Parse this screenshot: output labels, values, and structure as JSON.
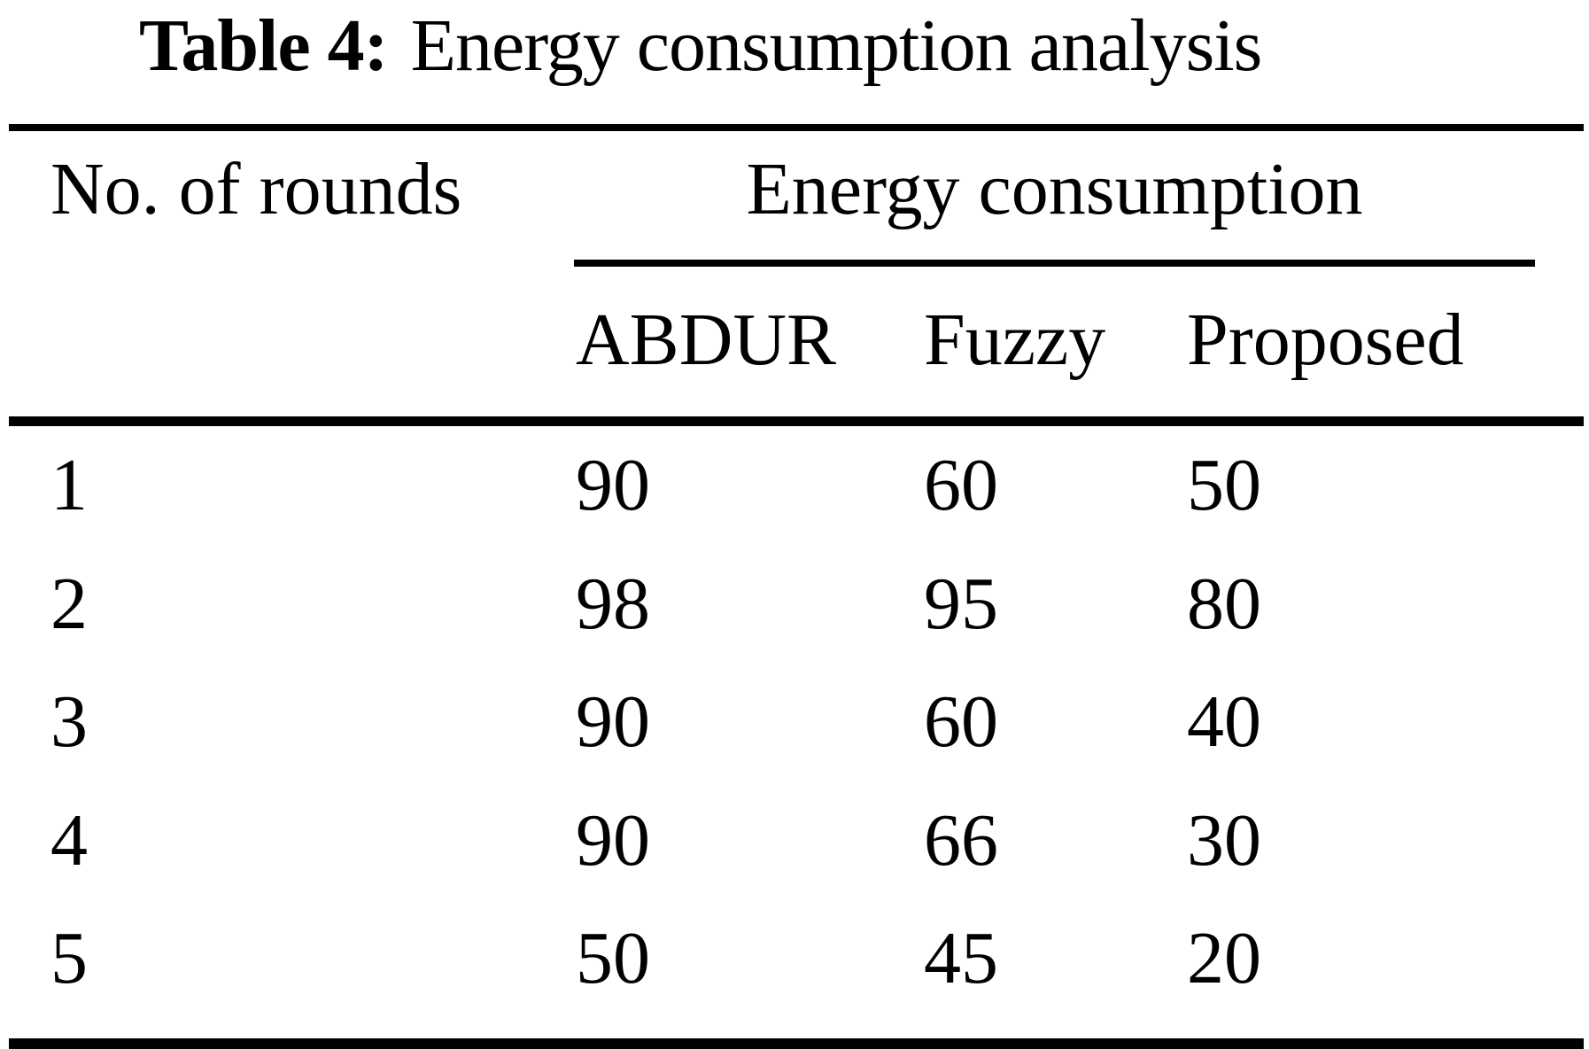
{
  "caption": {
    "label": "Table 4:",
    "text": "Energy consumption analysis"
  },
  "table": {
    "col1_header": "No. of rounds",
    "group_header": "Energy consumption",
    "sub_headers": [
      "ABDUR",
      "Fuzzy",
      "Proposed"
    ],
    "rows": [
      {
        "round": "1",
        "abdur": "90",
        "fuzzy": "60",
        "proposed": "50"
      },
      {
        "round": "2",
        "abdur": "98",
        "fuzzy": "95",
        "proposed": "80"
      },
      {
        "round": "3",
        "abdur": "90",
        "fuzzy": "60",
        "proposed": "40"
      },
      {
        "round": "4",
        "abdur": "90",
        "fuzzy": "66",
        "proposed": "30"
      },
      {
        "round": "5",
        "abdur": "50",
        "fuzzy": "45",
        "proposed": "20"
      }
    ]
  },
  "colors": {
    "background": "#ffffff",
    "text": "#000000",
    "rule": "#000000"
  },
  "chart_data": {
    "type": "table",
    "title": "Table 4: Energy consumption analysis",
    "columns": [
      "No. of rounds",
      "ABDUR",
      "Fuzzy",
      "Proposed"
    ],
    "group_header": {
      "label": "Energy consumption",
      "spans": [
        "ABDUR",
        "Fuzzy",
        "Proposed"
      ]
    },
    "rows": [
      [
        1,
        90,
        60,
        50
      ],
      [
        2,
        98,
        95,
        80
      ],
      [
        3,
        90,
        60,
        40
      ],
      [
        4,
        90,
        66,
        30
      ],
      [
        5,
        50,
        45,
        20
      ]
    ]
  }
}
